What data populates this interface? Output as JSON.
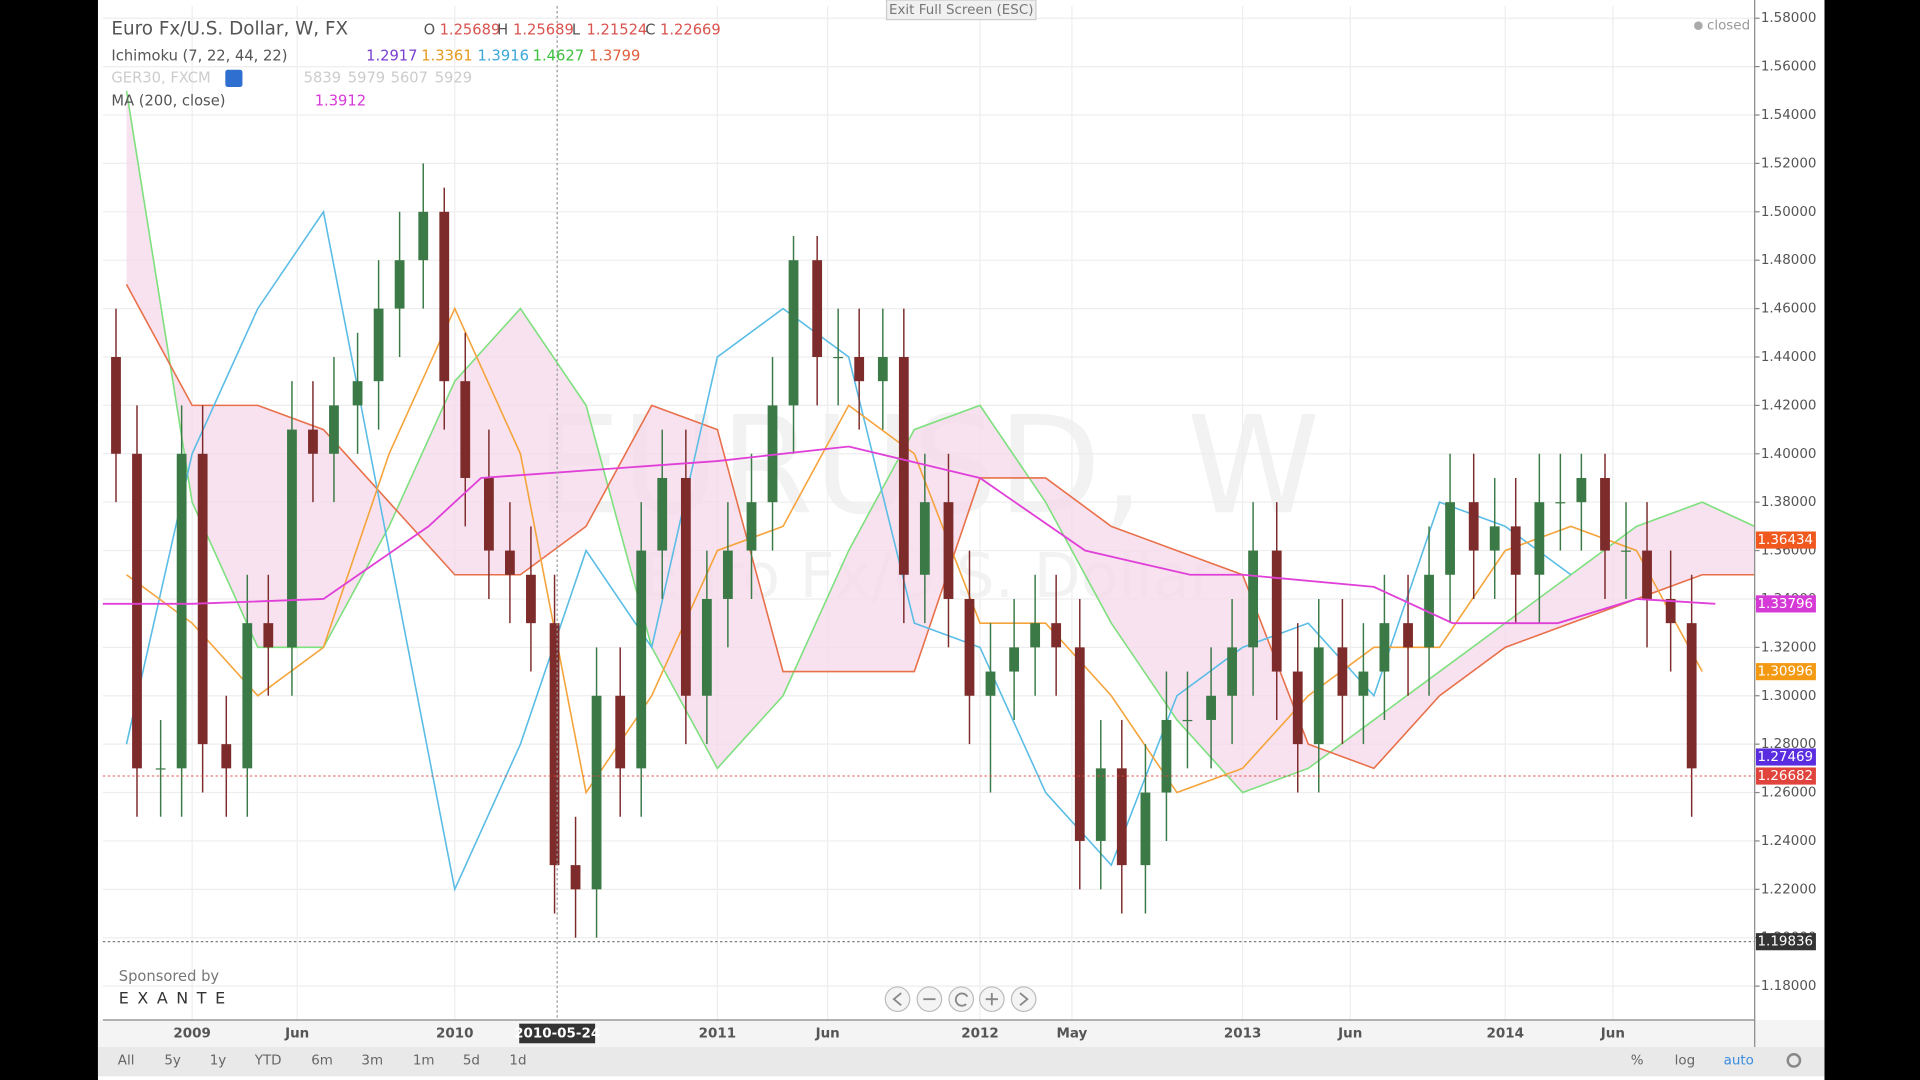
{
  "header": {
    "ohlc": [
      "O",
      "1.25689",
      "H",
      "1.25689",
      "L",
      "1.21524",
      "C",
      "1.22669"
    ],
    "ichimoku": {
      "label": "Ichimoku (7, 22, 44, 22)",
      "values": [
        "1.2917",
        "1.3361",
        "1.3916",
        "1.4627",
        "1.3799"
      ]
    },
    "ger30": {
      "label": "GER30, FXCM",
      "values": [
        "5839",
        "5979",
        "5607",
        "5929"
      ]
    },
    "ma": {
      "label": "MA (200, close)",
      "value": "1.3912"
    },
    "status": "closed",
    "exit": "Exit Full Screen (ESC)"
  },
  "watermark": {
    "symbol": "EURUSD, W",
    "name": "Euro Fx/U.S. Dollar"
  },
  "sponsor": {
    "label": "Sponsored by",
    "name": "EXANTE"
  },
  "toolbar": {
    "ranges": [
      "All",
      "5y",
      "1y",
      "YTD",
      "6m",
      "3m",
      "1m",
      "5d",
      "1d"
    ],
    "options": [
      "%",
      "log",
      "auto"
    ]
  },
  "chart_data": {
    "type": "candlestick",
    "title": "Euro Fx/U.S. Dollar, W, FX",
    "x": [
      2008.71,
      2008.79,
      2008.88,
      2008.96,
      2009.04,
      2009.13,
      2009.21,
      2009.29,
      2009.38,
      2009.46,
      2009.54,
      2009.63,
      2009.71,
      2009.79,
      2009.88,
      2009.96,
      2010.04,
      2010.13,
      2010.21,
      2010.29,
      2010.38,
      2010.46,
      2010.54,
      2010.63,
      2010.71,
      2010.79,
      2010.88,
      2010.96,
      2011.04,
      2011.13,
      2011.21,
      2011.29,
      2011.38,
      2011.46,
      2011.54,
      2011.63,
      2011.71,
      2011.79,
      2011.88,
      2011.96,
      2012.04,
      2012.13,
      2012.21,
      2012.29,
      2012.38,
      2012.46,
      2012.54,
      2012.63,
      2012.71,
      2012.79,
      2012.88,
      2012.96,
      2013.04,
      2013.13,
      2013.21,
      2013.29,
      2013.38,
      2013.46,
      2013.54,
      2013.63,
      2013.71,
      2013.79,
      2013.88,
      2013.96,
      2014.04,
      2014.13,
      2014.21,
      2014.29,
      2014.38,
      2014.46,
      2014.54,
      2014.63,
      2014.71
    ],
    "open": [
      1.44,
      1.4,
      1.27,
      1.27,
      1.4,
      1.28,
      1.27,
      1.33,
      1.32,
      1.41,
      1.4,
      1.42,
      1.43,
      1.46,
      1.48,
      1.5,
      1.43,
      1.39,
      1.36,
      1.35,
      1.33,
      1.23,
      1.22,
      1.3,
      1.27,
      1.36,
      1.39,
      1.3,
      1.34,
      1.36,
      1.38,
      1.42,
      1.48,
      1.44,
      1.44,
      1.43,
      1.44,
      1.35,
      1.38,
      1.34,
      1.3,
      1.31,
      1.32,
      1.33,
      1.32,
      1.24,
      1.27,
      1.23,
      1.26,
      1.29,
      1.29,
      1.3,
      1.32,
      1.36,
      1.31,
      1.28,
      1.32,
      1.3,
      1.31,
      1.33,
      1.32,
      1.35,
      1.38,
      1.36,
      1.37,
      1.35,
      1.38,
      1.38,
      1.39,
      1.36,
      1.36,
      1.34,
      1.33
    ],
    "high": [
      1.46,
      1.42,
      1.29,
      1.42,
      1.42,
      1.3,
      1.35,
      1.35,
      1.43,
      1.43,
      1.44,
      1.45,
      1.48,
      1.5,
      1.52,
      1.51,
      1.45,
      1.41,
      1.38,
      1.37,
      1.35,
      1.25,
      1.32,
      1.32,
      1.38,
      1.41,
      1.41,
      1.36,
      1.38,
      1.4,
      1.44,
      1.49,
      1.49,
      1.46,
      1.46,
      1.46,
      1.46,
      1.4,
      1.4,
      1.36,
      1.33,
      1.34,
      1.35,
      1.35,
      1.34,
      1.29,
      1.29,
      1.28,
      1.31,
      1.31,
      1.32,
      1.34,
      1.38,
      1.38,
      1.33,
      1.34,
      1.34,
      1.33,
      1.35,
      1.35,
      1.37,
      1.4,
      1.4,
      1.39,
      1.39,
      1.4,
      1.4,
      1.4,
      1.4,
      1.38,
      1.38,
      1.36,
      1.35
    ],
    "low": [
      1.38,
      1.25,
      1.25,
      1.25,
      1.26,
      1.25,
      1.25,
      1.3,
      1.3,
      1.38,
      1.38,
      1.4,
      1.41,
      1.44,
      1.46,
      1.41,
      1.37,
      1.34,
      1.33,
      1.31,
      1.21,
      1.2,
      1.2,
      1.25,
      1.25,
      1.34,
      1.28,
      1.28,
      1.32,
      1.34,
      1.36,
      1.4,
      1.42,
      1.42,
      1.41,
      1.41,
      1.33,
      1.33,
      1.32,
      1.28,
      1.26,
      1.29,
      1.3,
      1.3,
      1.22,
      1.22,
      1.21,
      1.21,
      1.24,
      1.27,
      1.27,
      1.28,
      1.3,
      1.29,
      1.26,
      1.26,
      1.28,
      1.28,
      1.29,
      1.3,
      1.3,
      1.33,
      1.34,
      1.34,
      1.33,
      1.33,
      1.36,
      1.36,
      1.34,
      1.34,
      1.32,
      1.31,
      1.25
    ],
    "close": [
      1.4,
      1.27,
      1.27,
      1.4,
      1.28,
      1.27,
      1.33,
      1.32,
      1.41,
      1.4,
      1.42,
      1.43,
      1.46,
      1.48,
      1.5,
      1.43,
      1.39,
      1.36,
      1.35,
      1.33,
      1.23,
      1.22,
      1.3,
      1.27,
      1.36,
      1.39,
      1.3,
      1.34,
      1.36,
      1.38,
      1.42,
      1.48,
      1.44,
      1.44,
      1.43,
      1.44,
      1.35,
      1.38,
      1.34,
      1.3,
      1.31,
      1.32,
      1.33,
      1.32,
      1.24,
      1.27,
      1.23,
      1.26,
      1.29,
      1.29,
      1.3,
      1.32,
      1.36,
      1.31,
      1.28,
      1.32,
      1.3,
      1.31,
      1.33,
      1.32,
      1.35,
      1.38,
      1.36,
      1.37,
      1.35,
      1.38,
      1.38,
      1.39,
      1.36,
      1.36,
      1.34,
      1.33,
      1.27
    ],
    "up_color": "#3b7a47",
    "down_color": "#7d2b2b",
    "ichimoku": {
      "x": [
        2008.75,
        2009.0,
        2009.25,
        2009.5,
        2009.75,
        2010.0,
        2010.25,
        2010.5,
        2010.75,
        2011.0,
        2011.25,
        2011.5,
        2011.75,
        2012.0,
        2012.25,
        2012.5,
        2012.75,
        2013.0,
        2013.25,
        2013.5,
        2013.75,
        2014.0,
        2014.25,
        2014.5,
        2014.75,
        2014.95
      ],
      "cloud_color": "#f6d8ea",
      "lines": [
        {
          "color": "#7ee07e",
          "values": [
            1.55,
            1.38,
            1.32,
            1.32,
            1.37,
            1.43,
            1.46,
            1.42,
            1.32,
            1.27,
            1.3,
            1.36,
            1.41,
            1.42,
            1.38,
            1.33,
            1.29,
            1.26,
            1.27,
            1.29,
            1.31,
            1.33,
            1.35,
            1.37,
            1.38,
            1.37
          ]
        },
        {
          "color": "#e8704a",
          "values": [
            1.47,
            1.42,
            1.42,
            1.41,
            1.38,
            1.35,
            1.35,
            1.37,
            1.42,
            1.41,
            1.31,
            1.31,
            1.31,
            1.39,
            1.39,
            1.37,
            1.36,
            1.35,
            1.28,
            1.27,
            1.3,
            1.32,
            1.33,
            1.34,
            1.35,
            1.35
          ]
        },
        {
          "color": "#5bbde6",
          "values": [
            1.28,
            1.4,
            1.46,
            1.5,
            1.36,
            1.22,
            1.28,
            1.36,
            1.32,
            1.44,
            1.46,
            1.44,
            1.33,
            1.32,
            1.26,
            1.23,
            1.3,
            1.32,
            1.33,
            1.3,
            1.38,
            1.37,
            1.35,
            null,
            null,
            null
          ]
        },
        {
          "color": "#f5a43c",
          "values": [
            1.35,
            1.33,
            1.3,
            1.32,
            1.4,
            1.46,
            1.4,
            1.26,
            1.3,
            1.36,
            1.37,
            1.42,
            1.4,
            1.33,
            1.33,
            1.3,
            1.26,
            1.27,
            1.3,
            1.32,
            1.32,
            1.36,
            1.37,
            1.36,
            1.31,
            null
          ]
        }
      ]
    },
    "ma": {
      "color": "#e040d8",
      "x": [
        2008.66,
        2009.0,
        2009.5,
        2009.9,
        2010.1,
        2011.0,
        2011.5,
        2012.0,
        2012.4,
        2012.8,
        2013.0,
        2013.5,
        2013.8,
        2014.2,
        2014.5,
        2014.8
      ],
      "values": [
        1.338,
        1.338,
        1.34,
        1.37,
        1.39,
        1.397,
        1.403,
        1.39,
        1.36,
        1.35,
        1.35,
        1.345,
        1.33,
        1.33,
        1.34,
        1.338
      ]
    },
    "xlim": [
      2008.66,
      2014.95
    ],
    "xticks": [
      {
        "value": 2009.0,
        "label": "2009"
      },
      {
        "value": 2009.4,
        "label": "Jun"
      },
      {
        "value": 2010.0,
        "label": "2010"
      },
      {
        "value": 2011.0,
        "label": "2011"
      },
      {
        "value": 2011.42,
        "label": "Jun"
      },
      {
        "value": 2012.0,
        "label": "2012"
      },
      {
        "value": 2012.35,
        "label": "May"
      },
      {
        "value": 2013.0,
        "label": "2013"
      },
      {
        "value": 2013.41,
        "label": "Jun"
      },
      {
        "value": 2014.0,
        "label": "2014"
      },
      {
        "value": 2014.41,
        "label": "Jun"
      }
    ],
    "ylim": [
      1.166,
      1.585
    ],
    "yticks": [
      {
        "value": 1.18,
        "label": "1.18000"
      },
      {
        "value": 1.2,
        "label": "1.20000"
      },
      {
        "value": 1.22,
        "label": "1.22000"
      },
      {
        "value": 1.24,
        "label": "1.24000"
      },
      {
        "value": 1.26,
        "label": "1.26000"
      },
      {
        "value": 1.28,
        "label": "1.28000"
      },
      {
        "value": 1.3,
        "label": "1.30000"
      },
      {
        "value": 1.32,
        "label": "1.32000"
      },
      {
        "value": 1.34,
        "label": "1.34000"
      },
      {
        "value": 1.36,
        "label": "1.36000"
      },
      {
        "value": 1.38,
        "label": "1.38000"
      },
      {
        "value": 1.4,
        "label": "1.40000"
      },
      {
        "value": 1.42,
        "label": "1.42000"
      },
      {
        "value": 1.44,
        "label": "1.44000"
      },
      {
        "value": 1.46,
        "label": "1.46000"
      },
      {
        "value": 1.48,
        "label": "1.48000"
      },
      {
        "value": 1.5,
        "label": "1.50000"
      },
      {
        "value": 1.52,
        "label": "1.52000"
      },
      {
        "value": 1.54,
        "label": "1.54000"
      },
      {
        "value": 1.56,
        "label": "1.56000"
      },
      {
        "value": 1.58,
        "label": "1.58000"
      }
    ],
    "grid": true,
    "price_labels": [
      {
        "value": 1.36434,
        "color": "#f0581e"
      },
      {
        "value": 1.33796,
        "color": "#d63ad6"
      },
      {
        "value": 1.30996,
        "color": "#f39a12"
      },
      {
        "value": 1.27469,
        "color": "#5a2ee0"
      },
      {
        "value": 1.26682,
        "color": "#e0443c",
        "dashed": true
      },
      {
        "value": 1.19836,
        "color": "#333333",
        "dashed": true
      }
    ],
    "crosshair": {
      "x": 2010.39,
      "label": "2010-05-24"
    }
  }
}
